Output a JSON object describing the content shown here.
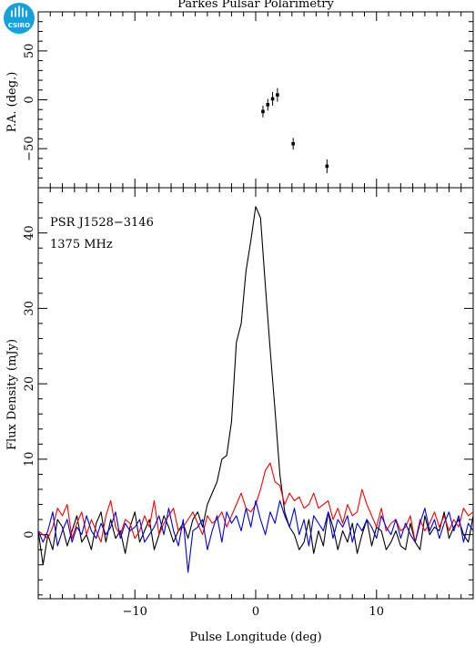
{
  "chart_data": [
    {
      "panel": "position-angle",
      "type": "scatter",
      "title": "Parkes Pulsar Polarimetry",
      "ylabel": "P.A. (deg.)",
      "ylim": [
        -90,
        90
      ],
      "yticks": [
        -50,
        0,
        50
      ],
      "points": [
        {
          "x": 0.6,
          "y": -12,
          "err": 6
        },
        {
          "x": 1.0,
          "y": -5,
          "err": 6
        },
        {
          "x": 1.4,
          "y": 1,
          "err": 7
        },
        {
          "x": 1.8,
          "y": 5,
          "err": 7
        },
        {
          "x": 3.1,
          "y": -45,
          "err": 6
        },
        {
          "x": 5.9,
          "y": -68,
          "err": 7
        }
      ]
    },
    {
      "panel": "flux-density",
      "type": "line",
      "xlabel": "Pulse Longitude (deg)",
      "ylabel": "Flux Density (mJy)",
      "xlim": [
        -18,
        18
      ],
      "ylim": [
        -8.5,
        46
      ],
      "xticks": [
        -10,
        0,
        10
      ],
      "yticks": [
        0,
        10,
        20,
        30,
        40
      ],
      "annotations": [
        "PSR J1528−3146",
        "1375 MHz"
      ],
      "x": [
        -18.0,
        -17.6,
        -17.2,
        -16.8,
        -16.4,
        -16.0,
        -15.6,
        -15.2,
        -14.8,
        -14.4,
        -14.0,
        -13.6,
        -13.2,
        -12.8,
        -12.4,
        -12.0,
        -11.6,
        -11.2,
        -10.8,
        -10.4,
        -10.0,
        -9.6,
        -9.2,
        -8.8,
        -8.4,
        -8.0,
        -7.6,
        -7.2,
        -6.8,
        -6.4,
        -6.0,
        -5.6,
        -5.2,
        -4.8,
        -4.4,
        -4.0,
        -3.6,
        -3.2,
        -2.8,
        -2.4,
        -2.0,
        -1.6,
        -1.2,
        -0.8,
        -0.4,
        0.0,
        0.4,
        0.8,
        1.2,
        1.6,
        2.0,
        2.4,
        2.8,
        3.2,
        3.6,
        4.0,
        4.4,
        4.8,
        5.2,
        5.6,
        6.0,
        6.4,
        6.8,
        7.2,
        7.6,
        8.0,
        8.4,
        8.8,
        9.2,
        9.6,
        10.0,
        10.4,
        10.8,
        11.2,
        11.6,
        12.0,
        12.4,
        12.8,
        13.2,
        13.6,
        14.0,
        14.4,
        14.8,
        15.2,
        15.6,
        16.0,
        16.4,
        16.8,
        17.2,
        17.6,
        18.0
      ],
      "series": [
        {
          "color": "#000000",
          "values": [
            0.5,
            -4.0,
            0.0,
            -2.0,
            2.0,
            1.0,
            -1.5,
            0.5,
            2.5,
            -1.0,
            0.0,
            -2.0,
            1.5,
            3.0,
            -1.0,
            2.0,
            -0.5,
            0.5,
            -2.5,
            1.0,
            3.0,
            -1.0,
            0.5,
            2.0,
            -2.0,
            0.0,
            2.5,
            1.0,
            -1.0,
            0.5,
            1.5,
            -0.5,
            2.0,
            3.0,
            1.0,
            4.0,
            5.5,
            7.0,
            10.0,
            10.5,
            15.0,
            25.5,
            28.0,
            35.0,
            39.0,
            43.5,
            42.0,
            33.0,
            24.5,
            16.5,
            8.0,
            3.0,
            1.0,
            0.0,
            -2.0,
            -1.0,
            2.0,
            -2.5,
            0.5,
            -1.5,
            3.0,
            1.0,
            -2.0,
            0.5,
            -1.0,
            1.5,
            -2.5,
            0.0,
            2.0,
            -1.5,
            1.0,
            0.5,
            -2.0,
            -1.0,
            0.5,
            -1.5,
            -2.0,
            1.5,
            -1.0,
            -2.0,
            2.5,
            0.0,
            1.0,
            0.5,
            3.0,
            -0.5,
            1.0,
            2.0,
            0.0,
            -1.0,
            2.5
          ]
        },
        {
          "color": "#ff0000",
          "values": [
            0.5,
            0.0,
            -0.5,
            1.0,
            3.5,
            2.5,
            4.0,
            -0.5,
            1.5,
            3.0,
            0.0,
            2.0,
            0.5,
            -1.0,
            2.5,
            4.5,
            1.0,
            0.0,
            2.0,
            1.5,
            -0.5,
            0.5,
            2.5,
            1.0,
            4.5,
            0.0,
            1.5,
            2.5,
            3.5,
            0.5,
            1.0,
            2.0,
            3.0,
            1.5,
            0.0,
            2.5,
            1.5,
            2.0,
            3.0,
            1.0,
            2.5,
            4.0,
            5.5,
            3.5,
            3.0,
            4.0,
            6.0,
            8.5,
            9.5,
            7.0,
            6.5,
            4.0,
            5.5,
            4.5,
            5.0,
            3.5,
            4.0,
            5.5,
            3.5,
            4.0,
            4.5,
            2.0,
            3.5,
            1.5,
            4.0,
            2.5,
            3.0,
            6.0,
            4.0,
            2.5,
            1.0,
            3.5,
            0.5,
            1.5,
            2.0,
            0.5,
            1.0,
            2.5,
            -1.0,
            2.0,
            0.5,
            1.5,
            3.0,
            1.0,
            2.5,
            0.5,
            2.0,
            1.0,
            3.5,
            2.5,
            3.0
          ]
        },
        {
          "color": "#0000dd",
          "values": [
            0.5,
            -1.0,
            0.5,
            3.0,
            -1.5,
            0.5,
            2.0,
            -1.0,
            1.0,
            0.0,
            2.5,
            0.5,
            -0.5,
            1.5,
            0.0,
            1.0,
            3.0,
            -0.5,
            1.5,
            0.5,
            1.0,
            2.0,
            -1.0,
            0.0,
            1.0,
            2.5,
            0.0,
            3.5,
            0.5,
            -1.5,
            2.0,
            -5.0,
            0.5,
            1.0,
            2.0,
            -2.0,
            0.5,
            2.5,
            -1.0,
            3.0,
            1.5,
            2.5,
            0.5,
            3.5,
            1.0,
            4.5,
            2.0,
            0.0,
            3.0,
            1.5,
            4.5,
            2.5,
            1.0,
            3.5,
            0.0,
            2.0,
            -1.5,
            2.5,
            1.5,
            0.5,
            3.0,
            -0.5,
            2.0,
            1.0,
            2.5,
            -1.0,
            1.5,
            0.5,
            2.0,
            1.0,
            -0.5,
            2.5,
            1.0,
            0.0,
            2.0,
            -0.5,
            1.5,
            0.0,
            -1.0,
            1.5,
            3.5,
            0.5,
            2.0,
            -0.5,
            1.5,
            3.0,
            0.5,
            2.5,
            -1.0,
            1.5,
            0.5
          ]
        }
      ]
    }
  ],
  "logo": {
    "text": "CSIRO",
    "color": "#1aa0d8"
  }
}
